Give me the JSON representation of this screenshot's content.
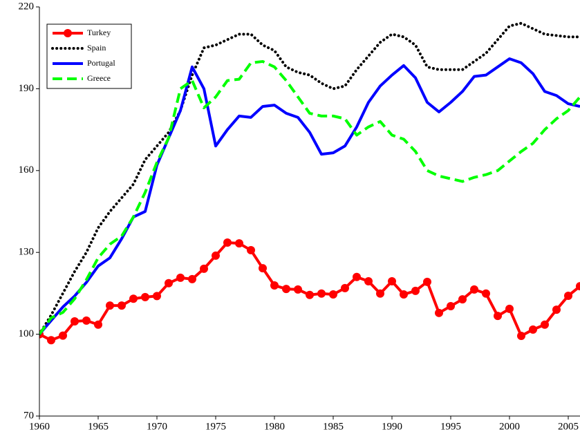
{
  "chart_data": {
    "type": "line",
    "x": [
      1960,
      1961,
      1962,
      1963,
      1964,
      1965,
      1966,
      1967,
      1968,
      1969,
      1970,
      1971,
      1972,
      1973,
      1974,
      1975,
      1976,
      1977,
      1978,
      1979,
      1980,
      1981,
      1982,
      1983,
      1984,
      1985,
      1986,
      1987,
      1988,
      1989,
      1990,
      1991,
      1992,
      1993,
      1994,
      1995,
      1996,
      1997,
      1998,
      1999,
      2000,
      2001,
      2002,
      2003,
      2004,
      2005,
      2006
    ],
    "series": [
      {
        "name": "Turkey",
        "color": "#ff0000",
        "style": "solid",
        "marker": "o",
        "values": [
          100,
          97.8,
          99.5,
          104.7,
          105,
          103.5,
          110.5,
          110.5,
          113,
          113.6,
          114,
          118.7,
          120.7,
          120.2,
          124,
          128.8,
          133.6,
          133.3,
          130.8,
          124.2,
          117.9,
          116.6,
          116.4,
          114.4,
          114.9,
          114.6,
          116.9,
          121,
          119.4,
          114.9,
          119.4,
          114.6,
          115.9,
          119.2,
          107.8,
          110.3,
          112.8,
          116.4,
          114.9,
          106.7,
          109.3,
          99.4,
          101.7,
          103.5,
          109,
          114.1,
          117.6
        ]
      },
      {
        "name": "Spain",
        "color": "#000000",
        "style": "dotted",
        "values": [
          100,
          107,
          115,
          123,
          130,
          139,
          145,
          150,
          155,
          164,
          169,
          174,
          182,
          195,
          205,
          206,
          208,
          210,
          210,
          206,
          204,
          198,
          196,
          195,
          192,
          190,
          191,
          197,
          202,
          207,
          210,
          209,
          206,
          198,
          197,
          197,
          197,
          200,
          203,
          208,
          213,
          214,
          212,
          210,
          209.5,
          209,
          209
        ]
      },
      {
        "name": "Portugal",
        "color": "#0000ff",
        "style": "solid",
        "values": [
          100,
          105,
          110,
          114,
          119,
          125,
          128,
          135,
          143,
          145,
          162,
          172,
          182,
          198,
          190,
          169,
          175,
          180,
          179.5,
          183.5,
          184,
          181,
          179.5,
          174,
          166,
          166.5,
          169,
          176,
          185,
          191,
          195,
          198.5,
          194,
          185,
          181.5,
          185,
          189,
          194.5,
          195,
          198,
          201,
          199.5,
          195.5,
          189,
          187.5,
          184.5,
          183.5
        ]
      },
      {
        "name": "Greece",
        "color": "#00ff00",
        "style": "dashed",
        "values": [
          100,
          106,
          108,
          113,
          120,
          128,
          133,
          136,
          143,
          152,
          163,
          172,
          190,
          193,
          183,
          187,
          193,
          193.5,
          199.5,
          200,
          198,
          193,
          187,
          181,
          180,
          180,
          179,
          173,
          176,
          178,
          173,
          171.5,
          167,
          160,
          158,
          157,
          156,
          157.5,
          158.5,
          160,
          163.5,
          167,
          170,
          175,
          179,
          182,
          187
        ]
      }
    ],
    "xlim": [
      1960,
      2006
    ],
    "xticks": [
      1960,
      1965,
      1970,
      1975,
      1980,
      1985,
      1990,
      1995,
      2000,
      2005
    ],
    "ylim": [
      70,
      220
    ],
    "yticks": [
      70,
      100,
      130,
      160,
      190,
      220
    ],
    "legend": "upper left"
  }
}
